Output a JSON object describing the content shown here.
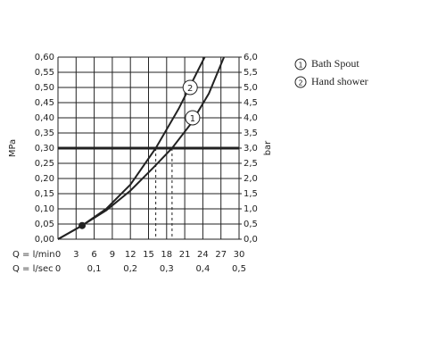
{
  "chart_data": {
    "type": "line",
    "xlabel": "Q = l/min",
    "x2label": "Q = l/sec",
    "ylabel": "MPa",
    "y2label": "bar",
    "xlim": [
      0,
      30
    ],
    "xticks": [
      0,
      3,
      6,
      9,
      12,
      15,
      18,
      21,
      24,
      27,
      30
    ],
    "x2lim": [
      0,
      0.5
    ],
    "x2ticks": [
      0,
      {
        "value": 0.1,
        "label": "0,1"
      },
      {
        "value": 0.2,
        "label": "0,2"
      },
      {
        "value": 0.3,
        "label": "0,3"
      },
      {
        "value": 0.4,
        "label": "0,4"
      },
      {
        "value": 0.5,
        "label": "0,5"
      }
    ],
    "ylim": [
      0,
      0.6
    ],
    "yticks": [
      {
        "value": 0,
        "label": "0,00"
      },
      {
        "value": 0.05,
        "label": "0,05"
      },
      {
        "value": 0.1,
        "label": "0,10"
      },
      {
        "value": 0.15,
        "label": "0,15"
      },
      {
        "value": 0.2,
        "label": "0,20"
      },
      {
        "value": 0.25,
        "label": "0,25"
      },
      {
        "value": 0.3,
        "label": "0,30"
      },
      {
        "value": 0.35,
        "label": "0,35"
      },
      {
        "value": 0.4,
        "label": "0,40"
      },
      {
        "value": 0.45,
        "label": "0,45"
      },
      {
        "value": 0.5,
        "label": "0,50"
      },
      {
        "value": 0.55,
        "label": "0,55"
      },
      {
        "value": 0.6,
        "label": "0,60"
      }
    ],
    "y2lim": [
      0,
      6
    ],
    "y2ticks": [
      {
        "value": 0,
        "label": "0,0"
      },
      {
        "value": 0.5,
        "label": "0,5"
      },
      {
        "value": 1,
        "label": "1,0"
      },
      {
        "value": 1.5,
        "label": "1,5"
      },
      {
        "value": 2,
        "label": "2,0"
      },
      {
        "value": 2.5,
        "label": "2,5"
      },
      {
        "value": 3,
        "label": "3,0"
      },
      {
        "value": 3.5,
        "label": "3,5"
      },
      {
        "value": 4,
        "label": "4,0"
      },
      {
        "value": 4.5,
        "label": "4,5"
      },
      {
        "value": 5,
        "label": "5,0"
      },
      {
        "value": 5.5,
        "label": "5,5"
      },
      {
        "value": 6,
        "label": "6,0"
      }
    ],
    "grid": true,
    "color": "#222222",
    "reference_y": 0.3,
    "dashed_x": [
      16.2,
      18.9
    ],
    "point": {
      "x": 4,
      "y": 0.045
    },
    "series": [
      {
        "name": "Bath Spout",
        "label": "1",
        "label_at": [
          22.3,
          0.4
        ],
        "x": [
          0,
          4,
          8,
          12,
          16,
          18.9,
          22,
          25,
          27.5
        ],
        "values": [
          0,
          0.045,
          0.095,
          0.16,
          0.24,
          0.3,
          0.38,
          0.48,
          0.6
        ]
      },
      {
        "name": "Hand shower",
        "label": "2",
        "label_at": [
          21.9,
          0.5
        ],
        "x": [
          0,
          4,
          8,
          12,
          16.2,
          20,
          24.3
        ],
        "values": [
          0,
          0.045,
          0.1,
          0.18,
          0.3,
          0.43,
          0.6
        ]
      }
    ]
  }
}
